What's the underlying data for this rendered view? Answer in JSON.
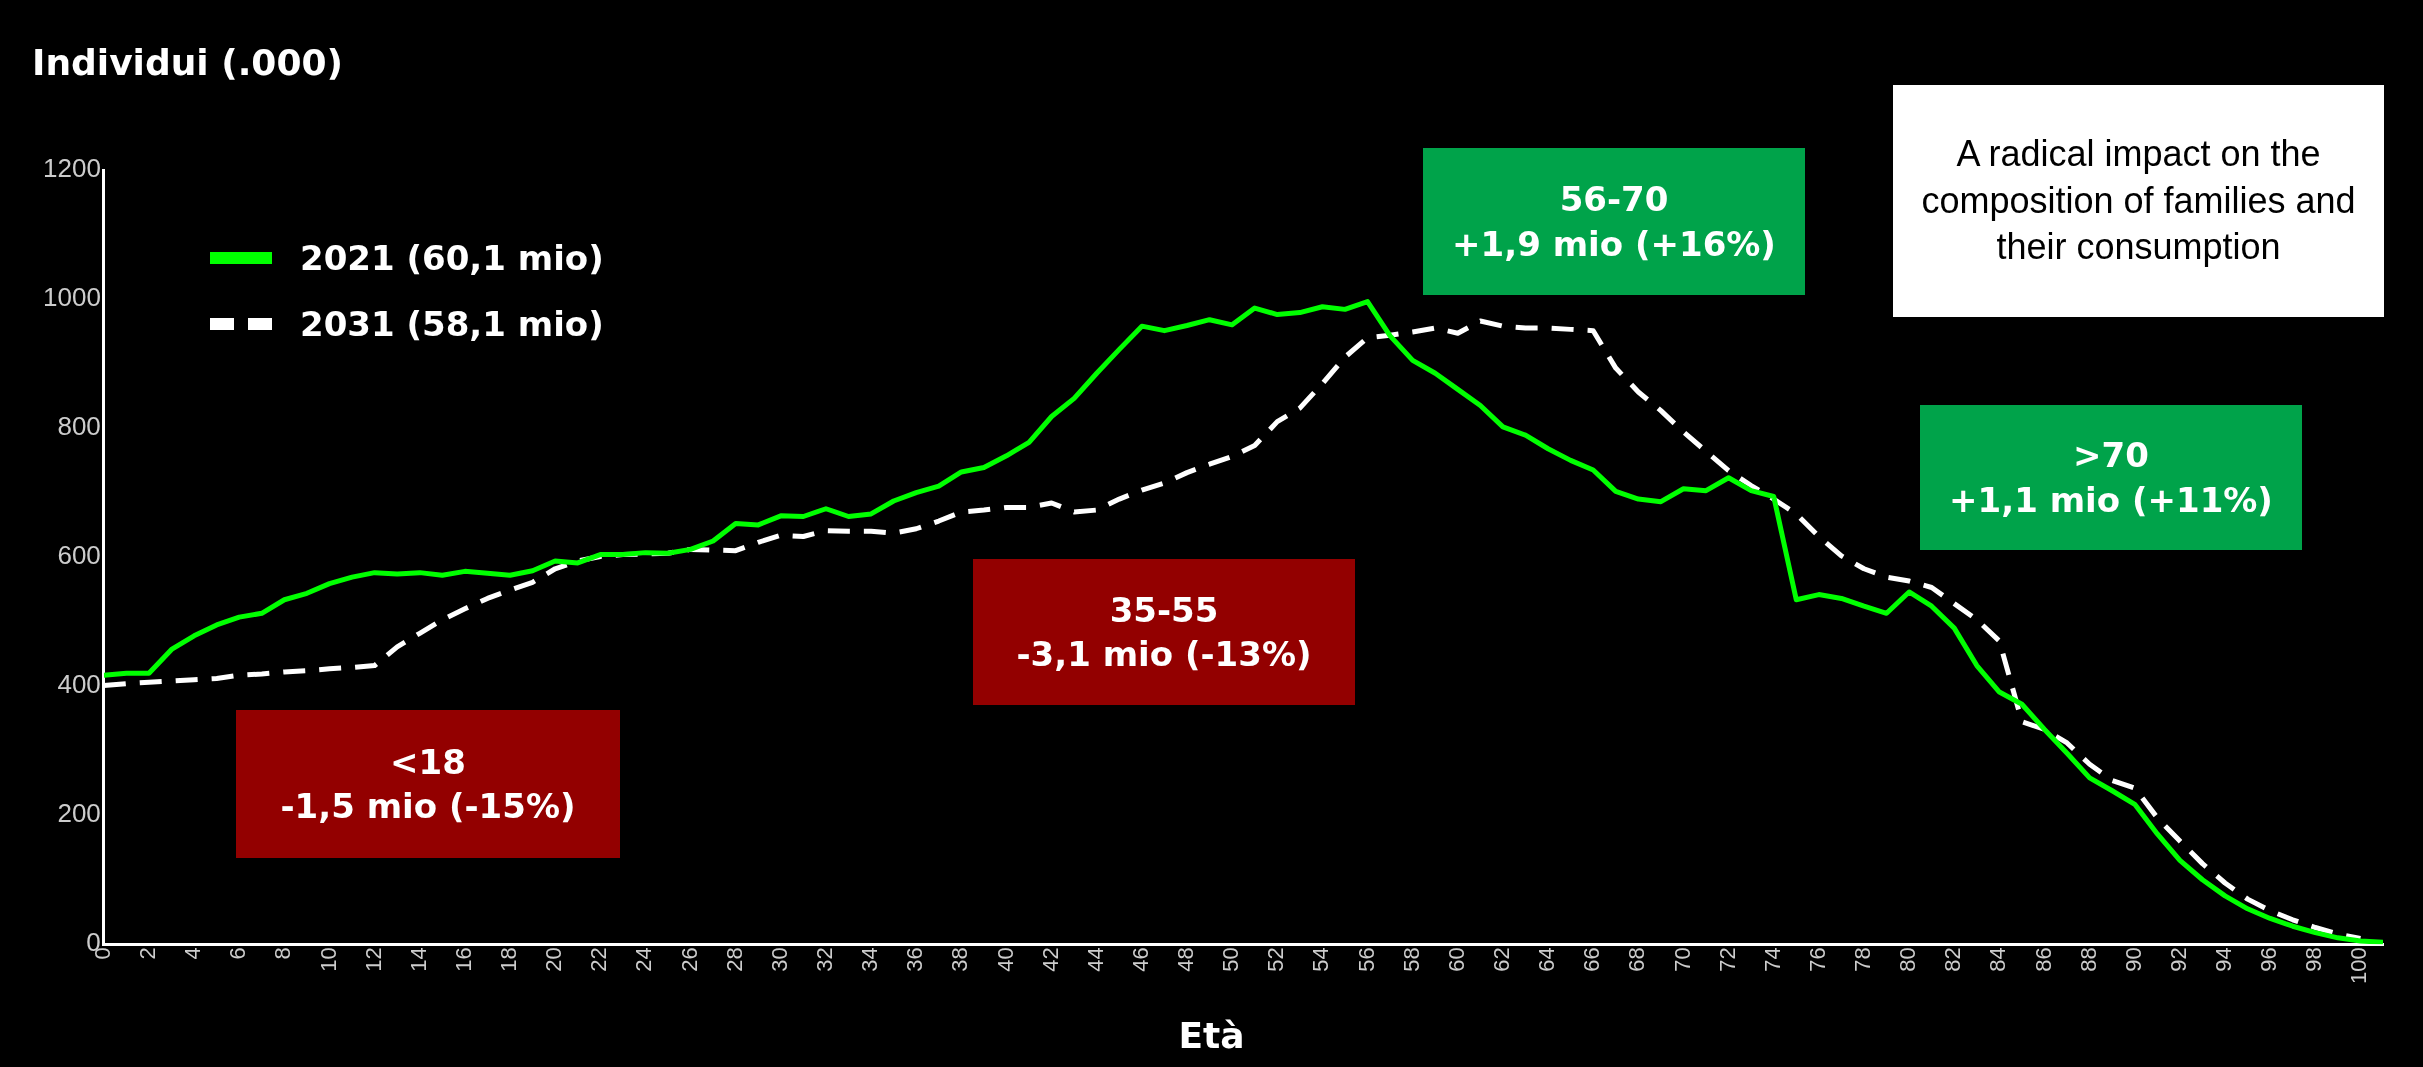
{
  "chart_data": {
    "type": "line",
    "ylabel": "Individui (.000)",
    "xlabel": "Età",
    "x": [
      0,
      1,
      2,
      3,
      4,
      5,
      6,
      7,
      8,
      9,
      10,
      11,
      12,
      13,
      14,
      15,
      16,
      17,
      18,
      19,
      20,
      21,
      22,
      23,
      24,
      25,
      26,
      27,
      28,
      29,
      30,
      31,
      32,
      33,
      34,
      35,
      36,
      37,
      38,
      39,
      40,
      41,
      42,
      43,
      44,
      45,
      46,
      47,
      48,
      49,
      50,
      51,
      52,
      53,
      54,
      55,
      56,
      57,
      58,
      59,
      60,
      61,
      62,
      63,
      64,
      65,
      66,
      67,
      68,
      69,
      70,
      71,
      72,
      73,
      74,
      75,
      76,
      77,
      78,
      79,
      80,
      81,
      82,
      83,
      84,
      85,
      86,
      87,
      88,
      89,
      90,
      91,
      92,
      93,
      94,
      95,
      96,
      97,
      98,
      99,
      100,
      101
    ],
    "series": [
      {
        "name": "2021  (60,1 mio)",
        "color": "#00ff00",
        "line_style": "solid",
        "values": [
          417,
          420,
          420,
          457,
          478,
          495,
          507,
          513,
          534,
          544,
          559,
          569,
          576,
          574,
          576,
          572,
          578,
          575,
          572,
          579,
          594,
          591,
          604,
          604,
          607,
          606,
          612,
          625,
          652,
          650,
          664,
          663,
          675,
          663,
          667,
          687,
          700,
          710,
          732,
          739,
          757,
          778,
          818,
          846,
          885,
          922,
          958,
          951,
          959,
          968,
          960,
          986,
          976,
          979,
          988,
          984,
          996,
          943,
          905,
          885,
          860,
          835,
          802,
          789,
          768,
          750,
          735,
          702,
          690,
          686,
          706,
          703,
          723,
          703,
          694,
          534,
          542,
          536,
          524,
          513,
          546,
          524,
          490,
          432,
          391,
          372,
          333,
          296,
          258,
          238,
          217,
          171,
          130,
          100,
          75,
          55,
          40,
          28,
          18,
          10,
          5,
          3
        ]
      },
      {
        "name": "2031  (58,1 mio)",
        "color": "#ffffff",
        "line_style": "dashed",
        "values": [
          401,
          404,
          406,
          408,
          410,
          412,
          417,
          419,
          422,
          424,
          427,
          429,
          432,
          461,
          482,
          503,
          520,
          536,
          549,
          561,
          582,
          594,
          601,
          604,
          605,
          606,
          612,
          611,
          610,
          623,
          634,
          632,
          641,
          640,
          640,
          637,
          644,
          656,
          670,
          673,
          677,
          677,
          684,
          670,
          673,
          690,
          704,
          715,
          731,
          744,
          756,
          773,
          810,
          831,
          869,
          910,
          940,
          944,
          949,
          955,
          947,
          966,
          958,
          955,
          955,
          953,
          951,
          893,
          856,
          827,
          794,
          764,
          734,
          711,
          690,
          667,
          632,
          602,
          582,
          569,
          563,
          553,
          528,
          503,
          470,
          345,
          333,
          312,
          279,
          254,
          242,
          196,
          160,
          125,
          95,
          70,
          52,
          38,
          26,
          16,
          9,
          null
        ]
      }
    ],
    "xlim": [
      0,
      101
    ],
    "xticks": [
      0,
      2,
      4,
      6,
      8,
      10,
      12,
      14,
      16,
      18,
      20,
      22,
      24,
      26,
      28,
      30,
      32,
      34,
      36,
      38,
      40,
      42,
      44,
      46,
      48,
      50,
      52,
      54,
      56,
      58,
      60,
      62,
      64,
      66,
      68,
      70,
      72,
      74,
      76,
      78,
      80,
      82,
      84,
      86,
      88,
      90,
      92,
      94,
      96,
      98,
      100
    ],
    "ylim": [
      0,
      1200
    ],
    "yticks": [
      0,
      200,
      400,
      600,
      800,
      1000,
      1200
    ],
    "legend": "top left",
    "marker": "none",
    "annotations": [
      "<18\n-1,5 mio (-15%)",
      "35-55\n-3,1 mio (-13%)",
      "56-70\n+1,9 mio (+16%)",
      ">70\n+1,1 mio (+11%)",
      "A radical impact on the composition of families and their consumption"
    ]
  }
}
